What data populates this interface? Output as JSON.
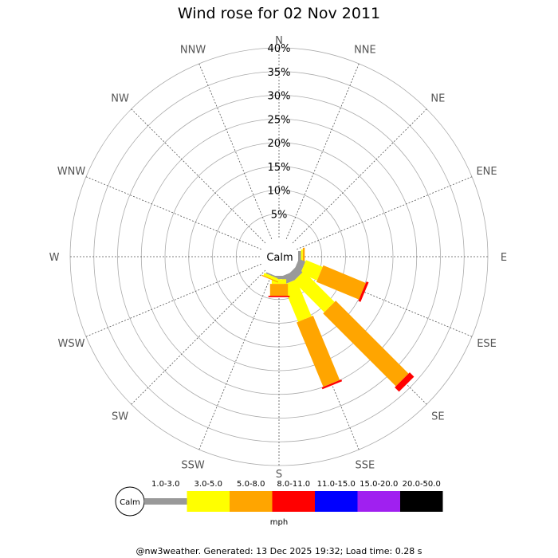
{
  "chart_data": {
    "type": "wind-rose",
    "title": "Wind rose for 02 Nov 2011",
    "center_label": "Calm",
    "directions": [
      "N",
      "NNE",
      "NE",
      "ENE",
      "E",
      "ESE",
      "SE",
      "SSE",
      "S",
      "SSW",
      "SW",
      "WSW",
      "W",
      "WNW",
      "NW",
      "NNW"
    ],
    "radial_ticks": [
      "5%",
      "10%",
      "15%",
      "20%",
      "25%",
      "30%",
      "35%",
      "40%"
    ],
    "rmax_percent": 40,
    "units": "mph",
    "speed_bins": [
      {
        "label": "1.0-3.0",
        "color": "#999999"
      },
      {
        "label": "3.0-5.0",
        "color": "#ffff00"
      },
      {
        "label": "5.0-8.0",
        "color": "#ffa500"
      },
      {
        "label": "8.0-11.0",
        "color": "#ff0000"
      },
      {
        "label": "11.0-15.0",
        "color": "#0000ff"
      },
      {
        "label": "15.0-20.0",
        "color": "#a020f0"
      },
      {
        "label": "20.0-50.0",
        "color": "#000000"
      }
    ],
    "series": [
      {
        "direction": "N",
        "cumulative": [
          0,
          0,
          0,
          0,
          0,
          0,
          0
        ]
      },
      {
        "direction": "NNE",
        "cumulative": [
          0,
          0,
          0,
          0,
          0,
          0,
          0
        ]
      },
      {
        "direction": "NE",
        "cumulative": [
          0,
          0,
          0,
          0,
          0,
          0,
          0
        ]
      },
      {
        "direction": "ENE",
        "cumulative": [
          0,
          0,
          0,
          0,
          0,
          0,
          0
        ]
      },
      {
        "direction": "E",
        "cumulative": [
          0.6,
          1.0,
          1.4,
          1.4,
          1.4,
          1.4,
          1.4
        ]
      },
      {
        "direction": "ESE",
        "cumulative": [
          1.5,
          5.3,
          15.0,
          15.5,
          15.5,
          15.5,
          15.5
        ]
      },
      {
        "direction": "SE",
        "cumulative": [
          1.8,
          11.0,
          32.7,
          34.0,
          34.0,
          34.0,
          34.0
        ]
      },
      {
        "direction": "SSE",
        "cumulative": [
          1.8,
          10.2,
          24.9,
          25.3,
          25.3,
          25.3,
          25.3
        ]
      },
      {
        "direction": "S",
        "cumulative": [
          0.7,
          1.7,
          4.2,
          4.5,
          4.5,
          4.5,
          4.5
        ]
      },
      {
        "direction": "SSW",
        "cumulative": [
          0.3,
          0.9,
          1.1,
          1.1,
          1.1,
          1.1,
          1.1
        ]
      },
      {
        "direction": "SW",
        "cumulative": [
          0,
          0,
          0,
          0,
          0,
          0,
          0
        ]
      },
      {
        "direction": "WSW",
        "cumulative": [
          0,
          0,
          0,
          0,
          0,
          0,
          0
        ]
      },
      {
        "direction": "W",
        "cumulative": [
          0,
          0,
          0,
          0,
          0,
          0,
          0
        ]
      },
      {
        "direction": "WNW",
        "cumulative": [
          0,
          0,
          0,
          0,
          0,
          0,
          0
        ]
      },
      {
        "direction": "NW",
        "cumulative": [
          0,
          0,
          0,
          0,
          0,
          0,
          0
        ]
      },
      {
        "direction": "NNW",
        "cumulative": [
          0,
          0,
          0,
          0,
          0,
          0,
          0
        ]
      }
    ]
  },
  "footer": "@nw3weather. Generated: 13 Dec 2025 19:32; Load time: 0.28 s"
}
